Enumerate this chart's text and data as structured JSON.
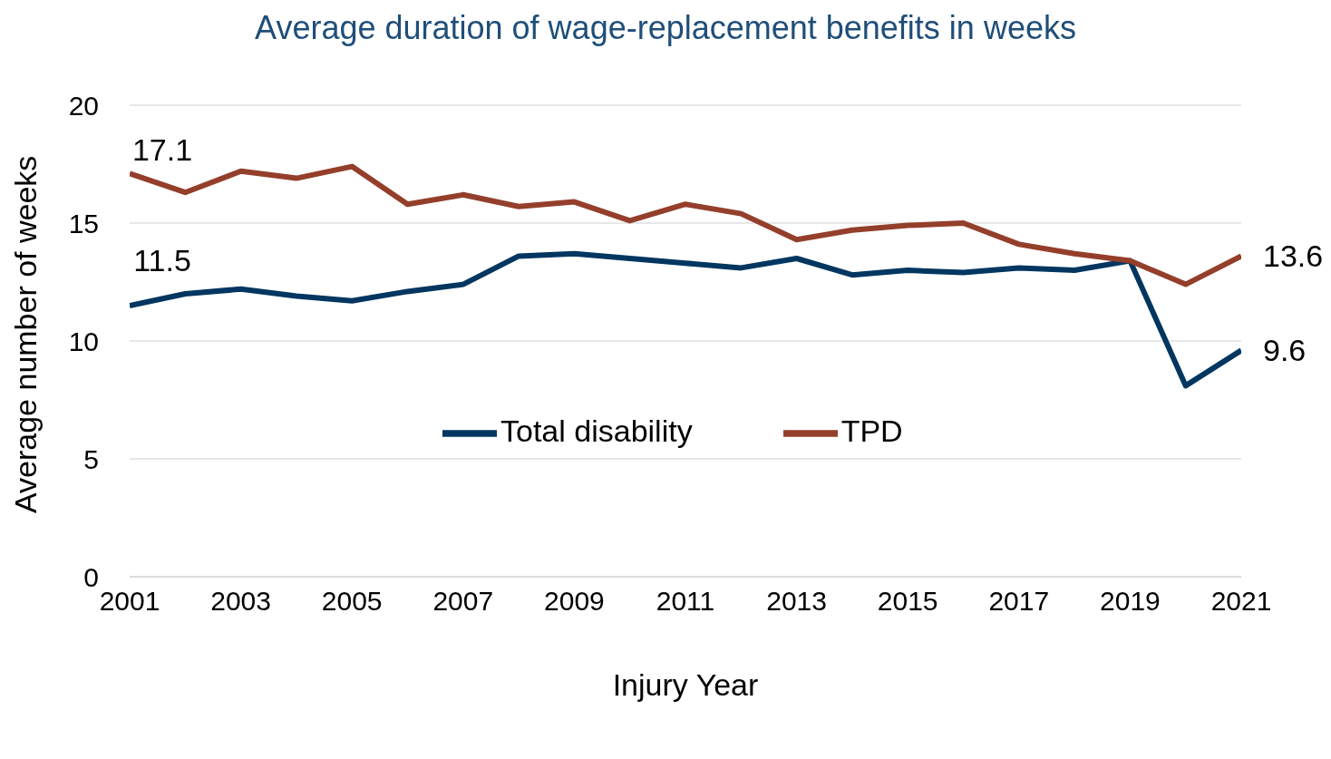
{
  "chart_data": {
    "type": "line",
    "title": "Average duration of wage-replacement benefits in weeks",
    "xlabel": "Injury Year",
    "ylabel": "Average number of weeks",
    "x": [
      2001,
      2002,
      2003,
      2004,
      2005,
      2006,
      2007,
      2008,
      2009,
      2010,
      2011,
      2012,
      2013,
      2014,
      2015,
      2016,
      2017,
      2018,
      2019,
      2020,
      2021
    ],
    "series": [
      {
        "name": "Total disability",
        "color": "#003660",
        "values": [
          11.5,
          12.0,
          12.2,
          11.9,
          11.7,
          12.1,
          12.4,
          13.6,
          13.7,
          13.5,
          13.3,
          13.1,
          13.5,
          12.8,
          13.0,
          12.9,
          13.1,
          13.0,
          13.4,
          8.1,
          9.6
        ],
        "value_labels": [
          "11.5",
          null,
          null,
          null,
          null,
          null,
          null,
          null,
          null,
          null,
          null,
          null,
          null,
          null,
          null,
          null,
          null,
          null,
          null,
          null,
          "9.6"
        ]
      },
      {
        "name": "TPD",
        "color": "#943f2b",
        "values": [
          17.1,
          16.3,
          17.2,
          16.9,
          17.4,
          15.8,
          16.2,
          15.7,
          15.9,
          15.1,
          15.8,
          15.4,
          14.3,
          14.7,
          14.9,
          15.0,
          14.1,
          13.7,
          13.4,
          12.4,
          13.6
        ],
        "value_labels": [
          "17.1",
          null,
          null,
          null,
          null,
          null,
          null,
          null,
          null,
          null,
          null,
          null,
          null,
          null,
          null,
          null,
          null,
          null,
          null,
          null,
          "13.6"
        ]
      }
    ],
    "xlim": [
      2001,
      2021
    ],
    "xticks": [
      2001,
      2003,
      2005,
      2007,
      2009,
      2011,
      2013,
      2015,
      2017,
      2019,
      2021
    ],
    "ylim": [
      0,
      20
    ],
    "yticks": [
      0,
      5,
      10,
      15,
      20
    ],
    "grid": "y",
    "legend": "center",
    "marker": "none",
    "line_style": "solid"
  }
}
